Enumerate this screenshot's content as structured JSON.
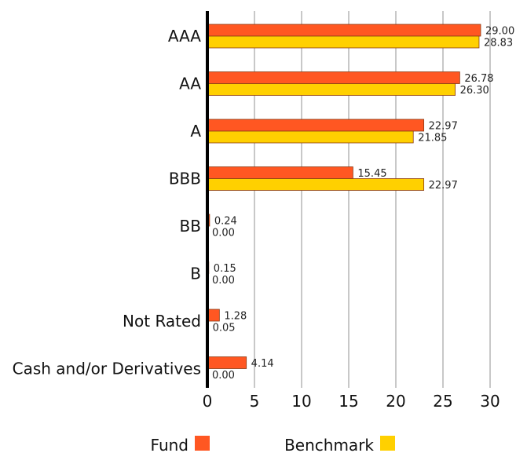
{
  "chart_data": {
    "type": "bar",
    "orientation": "horizontal",
    "categories": [
      "AAA",
      "AA",
      "A",
      "BBB",
      "BB",
      "B",
      "Not Rated",
      "Cash and/or Derivatives"
    ],
    "series": [
      {
        "name": "Fund",
        "color": "#ff5722",
        "values": [
          29.0,
          26.78,
          22.97,
          15.45,
          0.24,
          0.15,
          1.28,
          4.14
        ],
        "labels": [
          "29.00",
          "26.78",
          "22.97",
          "15.45",
          "0.24",
          "0.15",
          "1.28",
          "4.14"
        ]
      },
      {
        "name": "Benchmark",
        "color": "#ffd000",
        "values": [
          28.83,
          26.3,
          21.85,
          22.97,
          0.0,
          0.0,
          0.05,
          0.0
        ],
        "labels": [
          "28.83",
          "26.30",
          "21.85",
          "22.97",
          "0.00",
          "0.00",
          "0.05",
          "0.00"
        ]
      }
    ],
    "xlim": [
      0,
      30
    ],
    "xticks": [
      "0",
      "5",
      "10",
      "15",
      "20",
      "25",
      "30"
    ],
    "grid": true,
    "legend_position": "bottom"
  }
}
